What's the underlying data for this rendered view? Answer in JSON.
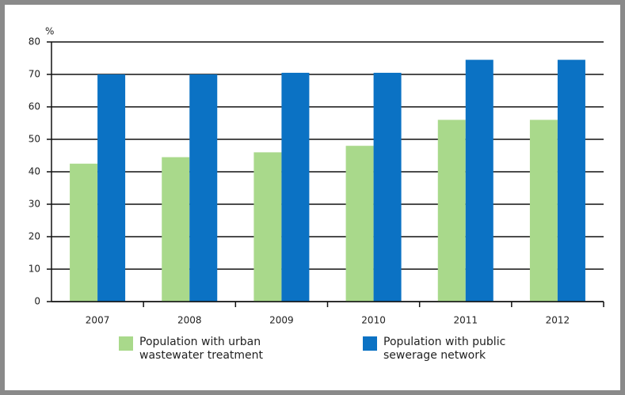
{
  "chart_data": {
    "type": "bar",
    "y_axis_label": "%",
    "categories": [
      "2007",
      "2008",
      "2009",
      "2010",
      "2011",
      "2012"
    ],
    "series": [
      {
        "name": "Population with urban wastewater treatment",
        "color": "#a9d98b",
        "values": [
          42.5,
          44.5,
          46,
          48,
          56,
          56
        ]
      },
      {
        "name": "Population with public sewerage network",
        "color": "#0b72c4",
        "values": [
          70,
          70,
          70.5,
          70.5,
          74.5,
          74.5
        ]
      }
    ],
    "ylim": [
      0,
      80
    ],
    "yticks": [
      0,
      10,
      20,
      30,
      40,
      50,
      60,
      70,
      80
    ],
    "grid": true
  }
}
